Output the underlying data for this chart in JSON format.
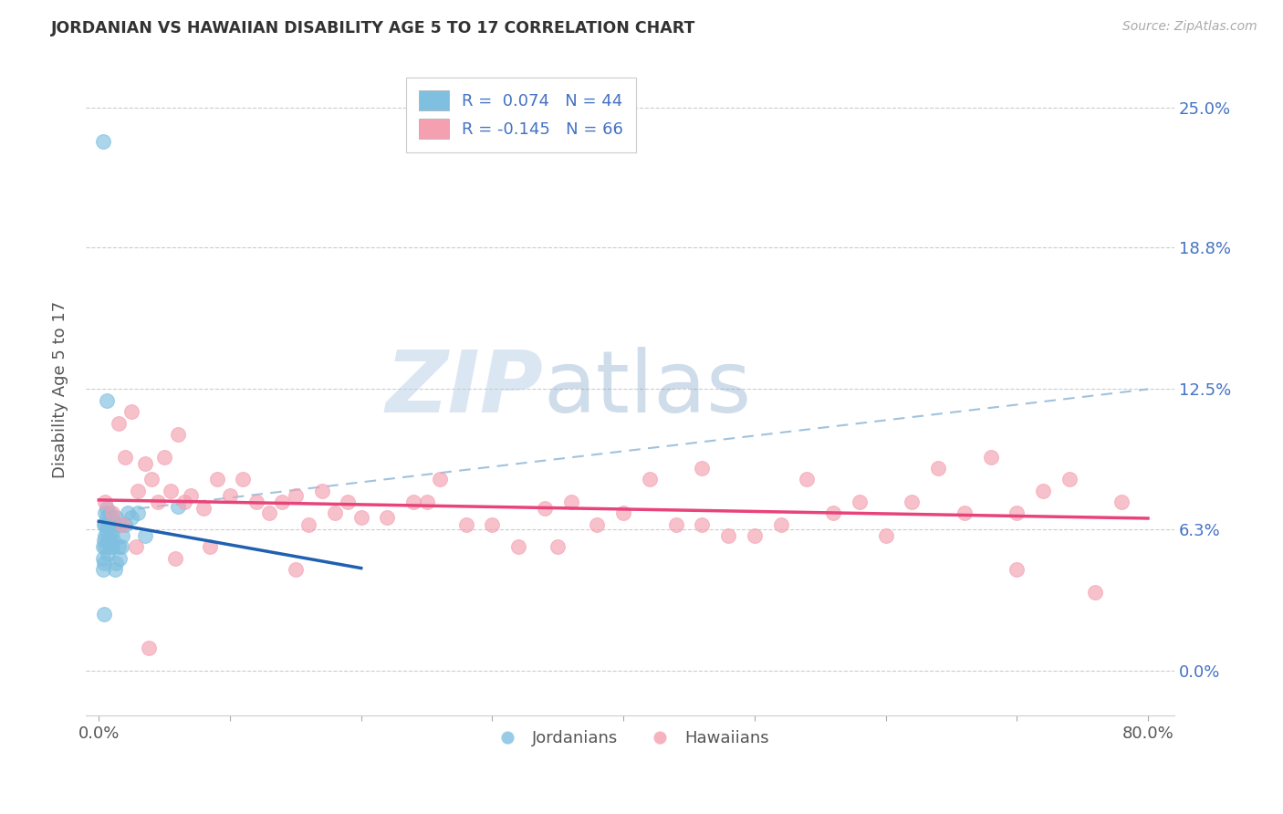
{
  "title": "JORDANIAN VS HAWAIIAN DISABILITY AGE 5 TO 17 CORRELATION CHART",
  "source": "Source: ZipAtlas.com",
  "ylabel": "Disability Age 5 to 17",
  "ytick_values": [
    0.0,
    6.3,
    12.5,
    18.8,
    25.0
  ],
  "xlim": [
    -1.0,
    82.0
  ],
  "ylim": [
    -2.0,
    27.0
  ],
  "color_jordanian": "#7fbfdf",
  "color_hawaiian": "#f4a0b0",
  "color_line_jordanian": "#2060b0",
  "color_line_hawaiian": "#e8437a",
  "color_trendline_dashed": "#90b8d8",
  "jordanian_x": [
    0.3,
    0.3,
    0.3,
    0.3,
    0.4,
    0.4,
    0.4,
    0.5,
    0.5,
    0.5,
    0.5,
    0.6,
    0.6,
    0.6,
    0.7,
    0.7,
    0.7,
    0.8,
    0.8,
    0.8,
    0.9,
    0.9,
    1.0,
    1.0,
    1.0,
    1.1,
    1.1,
    1.2,
    1.2,
    1.3,
    1.3,
    1.5,
    1.5,
    1.6,
    1.7,
    1.8,
    2.0,
    2.2,
    2.5,
    3.0,
    3.5,
    6.0,
    0.6,
    0.4
  ],
  "jordanian_y": [
    23.5,
    5.5,
    5.0,
    4.5,
    6.5,
    5.8,
    4.8,
    7.0,
    6.5,
    6.0,
    5.5,
    7.2,
    6.8,
    6.2,
    6.5,
    5.8,
    5.2,
    7.0,
    6.5,
    5.8,
    6.5,
    5.5,
    6.8,
    6.2,
    5.5,
    6.5,
    5.8,
    6.5,
    4.5,
    6.8,
    4.8,
    6.5,
    5.5,
    5.0,
    5.5,
    6.0,
    6.5,
    7.0,
    6.8,
    7.0,
    6.0,
    7.3,
    12.0,
    2.5
  ],
  "hawaiian_x": [
    0.5,
    1.0,
    1.5,
    2.0,
    2.5,
    3.0,
    3.5,
    4.0,
    4.5,
    5.0,
    5.5,
    6.0,
    6.5,
    7.0,
    8.0,
    9.0,
    10.0,
    11.0,
    12.0,
    13.0,
    14.0,
    15.0,
    16.0,
    17.0,
    18.0,
    19.0,
    20.0,
    22.0,
    24.0,
    26.0,
    28.0,
    30.0,
    32.0,
    34.0,
    36.0,
    38.0,
    40.0,
    42.0,
    44.0,
    46.0,
    48.0,
    50.0,
    52.0,
    54.0,
    56.0,
    58.0,
    60.0,
    62.0,
    64.0,
    66.0,
    68.0,
    70.0,
    72.0,
    74.0,
    76.0,
    78.0,
    1.8,
    2.8,
    3.8,
    5.8,
    8.5,
    15.0,
    25.0,
    35.0,
    46.0,
    70.0
  ],
  "hawaiian_y": [
    7.5,
    7.0,
    11.0,
    9.5,
    11.5,
    8.0,
    9.2,
    8.5,
    7.5,
    9.5,
    8.0,
    10.5,
    7.5,
    7.8,
    7.2,
    8.5,
    7.8,
    8.5,
    7.5,
    7.0,
    7.5,
    7.8,
    6.5,
    8.0,
    7.0,
    7.5,
    6.8,
    6.8,
    7.5,
    8.5,
    6.5,
    6.5,
    5.5,
    7.2,
    7.5,
    6.5,
    7.0,
    8.5,
    6.5,
    9.0,
    6.0,
    6.0,
    6.5,
    8.5,
    7.0,
    7.5,
    6.0,
    7.5,
    9.0,
    7.0,
    9.5,
    7.0,
    8.0,
    8.5,
    3.5,
    7.5,
    6.5,
    5.5,
    1.0,
    5.0,
    5.5,
    4.5,
    7.5,
    5.5,
    6.5,
    4.5
  ],
  "dashed_x0": 3.0,
  "dashed_y0": 7.2,
  "dashed_x1": 80.0,
  "dashed_y1": 12.5,
  "watermark_zip": "ZIP",
  "watermark_atlas": "atlas",
  "background_color": "#ffffff",
  "grid_color": "#cccccc",
  "right_tick_color": "#4472c4"
}
